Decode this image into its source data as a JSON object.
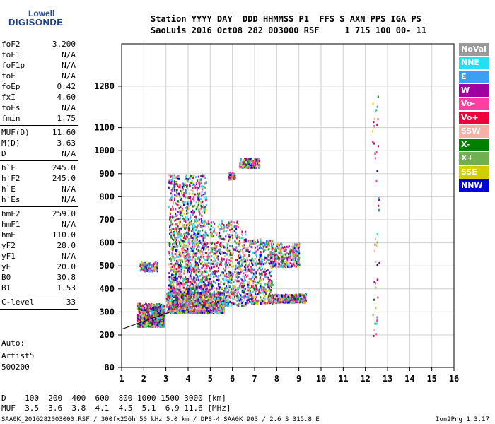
{
  "logo": {
    "top": "Lowell",
    "main": "DIGISONDE"
  },
  "header": {
    "line1": "Station YYYY DAY  DDD HHMMSS P1  FFS S AXN PPS IGA PS",
    "line2": "SaoLuis 2016 Oct08 282 003000 RSF     1 715 100 00- 11"
  },
  "params": [
    {
      "name": "foF2",
      "value": "3.200"
    },
    {
      "name": "foF1",
      "value": "N/A"
    },
    {
      "name": "foF1p",
      "value": "N/A"
    },
    {
      "name": "foE",
      "value": "N/A"
    },
    {
      "name": "foEp",
      "value": "0.42"
    },
    {
      "name": "fxI",
      "value": "4.60"
    },
    {
      "name": "foEs",
      "value": "N/A"
    },
    {
      "name": "fmin",
      "value": "1.75"
    },
    {
      "name": "MUF(D)",
      "value": "11.60"
    },
    {
      "name": "M(D)",
      "value": "3.63"
    },
    {
      "name": "D",
      "value": "N/A"
    },
    {
      "name": "h`F",
      "value": "245.0"
    },
    {
      "name": "h`F2",
      "value": "245.0"
    },
    {
      "name": "h`E",
      "value": "N/A"
    },
    {
      "name": "h`Es",
      "value": "N/A"
    },
    {
      "name": "hmF2",
      "value": "259.0"
    },
    {
      "name": "hmF1",
      "value": "N/A"
    },
    {
      "name": "hmE",
      "value": "110.0"
    },
    {
      "name": "yF2",
      "value": "28.0"
    },
    {
      "name": "yF1",
      "value": "N/A"
    },
    {
      "name": "yE",
      "value": "20.0"
    },
    {
      "name": "B0",
      "value": "30.8"
    },
    {
      "name": "B1",
      "value": "1.53"
    },
    {
      "name": "C-level",
      "value": "33"
    }
  ],
  "auto": {
    "line1": "Auto:",
    "line2": "Artist5",
    "line3": "500200"
  },
  "legend": [
    {
      "label": "NoVal",
      "color": "#999999"
    },
    {
      "label": "NNE",
      "color": "#22e0f0"
    },
    {
      "label": "E",
      "color": "#3aa0f0"
    },
    {
      "label": "W",
      "color": "#a000a0"
    },
    {
      "label": "Vo-",
      "color": "#ff3fa0"
    },
    {
      "label": "Vo+",
      "color": "#f0003a"
    },
    {
      "label": "SSW",
      "color": "#f5b0a8"
    },
    {
      "label": "X-",
      "color": "#008000"
    },
    {
      "label": "X+",
      "color": "#70b050"
    },
    {
      "label": "SSE",
      "color": "#d0d000"
    },
    {
      "label": "NNW",
      "color": "#0000d8"
    }
  ],
  "chart_data": {
    "type": "scatter",
    "x_ticks": [
      "1",
      "2",
      "3",
      "4",
      "5",
      "6",
      "7",
      "8",
      "9",
      "10",
      "11",
      "12",
      "13",
      "14",
      "15",
      "16"
    ],
    "y_ticks": [
      "80",
      "200",
      "300",
      "400",
      "500",
      "600",
      "700",
      "800",
      "900",
      "1000",
      "1100",
      "1280"
    ],
    "xlim": [
      1,
      16
    ],
    "ylim": [
      80,
      1280
    ],
    "grid": true,
    "trace_line": {
      "x": [
        1,
        3.2
      ],
      "y": [
        225,
        300
      ]
    },
    "clusters": [
      {
        "x": [
          1.7,
          2.9
        ],
        "y": [
          240,
          340
        ],
        "weight": 1.6
      },
      {
        "x": [
          3.0,
          5.6
        ],
        "y": [
          300,
          390
        ],
        "weight": 2.4
      },
      {
        "x": [
          3.1,
          4.8
        ],
        "y": [
          380,
          900
        ],
        "weight": 2.6
      },
      {
        "x": [
          4.8,
          6.6
        ],
        "y": [
          330,
          700
        ],
        "weight": 1.6
      },
      {
        "x": [
          6.6,
          7.8
        ],
        "y": [
          340,
          620
        ],
        "weight": 0.9
      },
      {
        "x": [
          7.6,
          9.3
        ],
        "y": [
          345,
          380
        ],
        "weight": 0.9
      },
      {
        "x": [
          7.7,
          9.0
        ],
        "y": [
          500,
          600
        ],
        "weight": 0.6
      },
      {
        "x": [
          6.3,
          7.2
        ],
        "y": [
          930,
          970
        ],
        "weight": 0.35
      },
      {
        "x": [
          5.8,
          6.1
        ],
        "y": [
          880,
          910
        ],
        "weight": 0.15
      },
      {
        "x": [
          1.8,
          2.6
        ],
        "y": [
          480,
          520
        ],
        "weight": 0.25
      },
      {
        "x": [
          12.3,
          12.6
        ],
        "y": [
          200,
          1280
        ],
        "weight": 0.1
      }
    ]
  },
  "footer": {
    "d_row": "D    100  200  400  600  800 1000 1500 3000 [km]",
    "muf_row": "MUF  3.5  3.6  3.8  4.1  4.5  5.1  6.9 11.6 [MHz]",
    "file_info": "SAA0K_2016282003000.RSF / 300fx256h 50 kHz 5.0 km / DPS-4 SAA0K 903 / 2.6 S 315.8 E",
    "version": "Ion2Png 1.3.17"
  }
}
